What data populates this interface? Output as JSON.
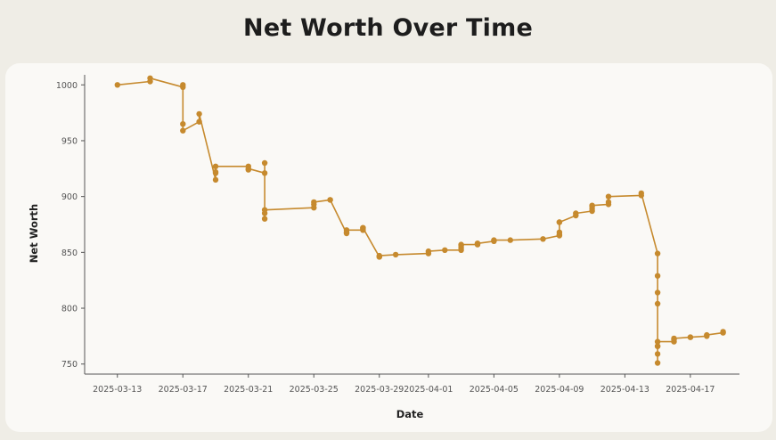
{
  "chart_data": {
    "type": "line",
    "title": "Net Worth Over Time",
    "xlabel": "Date",
    "ylabel": "Net Worth",
    "xlim": [
      "2025-03-11",
      "2025-04-20"
    ],
    "ylim": [
      741,
      1009
    ],
    "x_ticks": [
      "2025-03-13",
      "2025-03-17",
      "2025-03-21",
      "2025-03-25",
      "2025-03-29",
      "2025-04-01",
      "2025-04-05",
      "2025-04-09",
      "2025-04-13",
      "2025-04-17"
    ],
    "y_ticks": [
      750,
      800,
      850,
      900,
      950,
      1000
    ],
    "grid": false,
    "color": "#c68a2e",
    "series": [
      {
        "x": [
          "2025-03-13",
          "2025-03-15",
          "2025-03-15",
          "2025-03-17",
          "2025-03-17",
          "2025-03-17",
          "2025-03-17",
          "2025-03-18",
          "2025-03-18",
          "2025-03-19",
          "2025-03-19",
          "2025-03-19",
          "2025-03-19",
          "2025-03-21",
          "2025-03-21",
          "2025-03-21",
          "2025-03-22",
          "2025-03-22",
          "2025-03-22",
          "2025-03-22",
          "2025-03-22",
          "2025-03-25",
          "2025-03-25",
          "2025-03-25",
          "2025-03-26",
          "2025-03-26",
          "2025-03-27",
          "2025-03-27",
          "2025-03-27",
          "2025-03-28",
          "2025-03-28",
          "2025-03-28",
          "2025-03-28",
          "2025-03-29",
          "2025-03-29",
          "2025-03-29",
          "2025-03-30",
          "2025-04-01",
          "2025-04-01",
          "2025-04-02",
          "2025-04-03",
          "2025-04-03",
          "2025-04-03",
          "2025-04-03",
          "2025-04-04",
          "2025-04-04",
          "2025-04-04",
          "2025-04-05",
          "2025-04-05",
          "2025-04-06",
          "2025-04-08",
          "2025-04-09",
          "2025-04-09",
          "2025-04-09",
          "2025-04-09",
          "2025-04-09",
          "2025-04-10",
          "2025-04-10",
          "2025-04-11",
          "2025-04-11",
          "2025-04-11",
          "2025-04-11",
          "2025-04-12",
          "2025-04-12",
          "2025-04-12",
          "2025-04-14",
          "2025-04-14",
          "2025-04-15",
          "2025-04-15",
          "2025-04-15",
          "2025-04-15",
          "2025-04-15",
          "2025-04-15",
          "2025-04-15",
          "2025-04-15",
          "2025-04-15",
          "2025-04-16",
          "2025-04-16",
          "2025-04-16",
          "2025-04-17",
          "2025-04-17",
          "2025-04-18",
          "2025-04-18",
          "2025-04-19",
          "2025-04-19"
        ],
        "y": [
          1000,
          1003,
          1006,
          998,
          1000,
          965,
          959,
          967,
          974,
          915,
          921,
          922,
          927,
          927,
          924,
          925,
          921,
          930,
          880,
          885,
          888,
          890,
          893,
          895,
          897,
          897,
          867,
          868,
          870,
          870,
          871,
          872,
          872,
          846,
          846,
          847,
          848,
          849,
          851,
          852,
          852,
          854,
          856,
          857,
          857,
          858,
          858,
          860,
          861,
          861,
          862,
          865,
          866,
          868,
          877,
          877,
          883,
          885,
          887,
          889,
          891,
          892,
          893,
          895,
          900,
          901,
          903,
          849,
          829,
          814,
          804,
          766,
          759,
          751,
          766,
          770,
          770,
          772,
          773,
          774,
          774,
          775,
          776,
          778,
          779
        ]
      }
    ]
  }
}
